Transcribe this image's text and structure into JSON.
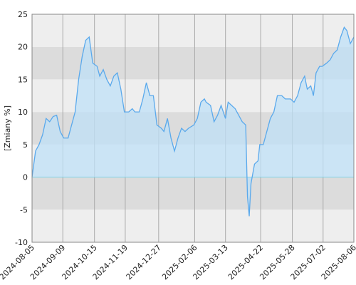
{
  "chart_data": {
    "type": "line",
    "ylabel": "[Zmiany %]",
    "ylim": [
      -10,
      25
    ],
    "yticks": [
      -10,
      -5,
      0,
      5,
      10,
      15,
      20,
      25
    ],
    "xlim": [
      "2024-08-05",
      "2025-08-06"
    ],
    "xticks": [
      "2024-08-05",
      "2024-09-09",
      "2024-10-15",
      "2024-11-19",
      "2024-12-27",
      "2025-02-06",
      "2025-03-13",
      "2025-04-22",
      "2025-05-28",
      "2025-07-02",
      "2025-08-06"
    ],
    "grid": true,
    "color": "#5aa9ec",
    "fill": "#bfe0f7",
    "x": [
      "2024-08-05",
      "2024-08-09",
      "2024-08-13",
      "2024-08-17",
      "2024-08-21",
      "2024-08-25",
      "2024-08-29",
      "2024-09-02",
      "2024-09-06",
      "2024-09-10",
      "2024-09-15",
      "2024-09-19",
      "2024-09-23",
      "2024-09-27",
      "2024-10-01",
      "2024-10-05",
      "2024-10-09",
      "2024-10-13",
      "2024-10-18",
      "2024-10-21",
      "2024-10-25",
      "2024-10-29",
      "2024-11-02",
      "2024-11-06",
      "2024-11-10",
      "2024-11-14",
      "2024-11-18",
      "2024-11-23",
      "2024-11-27",
      "2024-11-30",
      "2024-12-05",
      "2024-12-09",
      "2024-12-13",
      "2024-12-17",
      "2024-12-21",
      "2024-12-25",
      "2024-12-30",
      "2025-01-02",
      "2025-01-06",
      "2025-01-10",
      "2025-01-14",
      "2025-01-18",
      "2025-01-22",
      "2025-01-26",
      "2025-01-30",
      "2025-02-05",
      "2025-02-09",
      "2025-02-13",
      "2025-02-17",
      "2025-02-19",
      "2025-02-24",
      "2025-02-28",
      "2025-03-04",
      "2025-03-08",
      "2025-03-13",
      "2025-03-16",
      "2025-03-20",
      "2025-03-24",
      "2025-03-28",
      "2025-04-01",
      "2025-04-05",
      "2025-04-07",
      "2025-04-09",
      "2025-04-11",
      "2025-04-15",
      "2025-04-19",
      "2025-04-21",
      "2025-04-25",
      "2025-04-29",
      "2025-05-03",
      "2025-05-07",
      "2025-05-11",
      "2025-05-16",
      "2025-05-20",
      "2025-05-26",
      "2025-05-30",
      "2025-06-03",
      "2025-06-07",
      "2025-06-11",
      "2025-06-14",
      "2025-06-18",
      "2025-06-21",
      "2025-06-24",
      "2025-06-28",
      "2025-07-01",
      "2025-07-06",
      "2025-07-10",
      "2025-07-14",
      "2025-07-18",
      "2025-07-22",
      "2025-07-26",
      "2025-07-29",
      "2025-08-02",
      "2025-08-06"
    ],
    "values": [
      0,
      4,
      5,
      6.5,
      9,
      8.5,
      9.3,
      9.5,
      7,
      6,
      6,
      8,
      10,
      15,
      18.5,
      21,
      21.5,
      17.5,
      17,
      15.5,
      16.5,
      15,
      14,
      15.5,
      16,
      13.5,
      10,
      10,
      10.5,
      10,
      10,
      12,
      14.5,
      12.5,
      12.5,
      8,
      7.5,
      7,
      9,
      6,
      4,
      6,
      7.5,
      7,
      7.5,
      8,
      9,
      11.5,
      12,
      11.5,
      11,
      8.5,
      9.5,
      11,
      9,
      11.5,
      11,
      10.5,
      9.5,
      8.5,
      8,
      -3,
      -6,
      -1,
      2,
      2.5,
      5,
      5,
      7,
      9,
      10,
      12.5,
      12.5,
      12,
      12,
      11.5,
      12.5,
      14.5,
      15.5,
      13.5,
      14,
      12.5,
      16,
      17,
      17,
      17.5,
      18,
      19,
      19.5,
      21.5,
      23,
      22.5,
      20.5,
      21.5
    ]
  }
}
